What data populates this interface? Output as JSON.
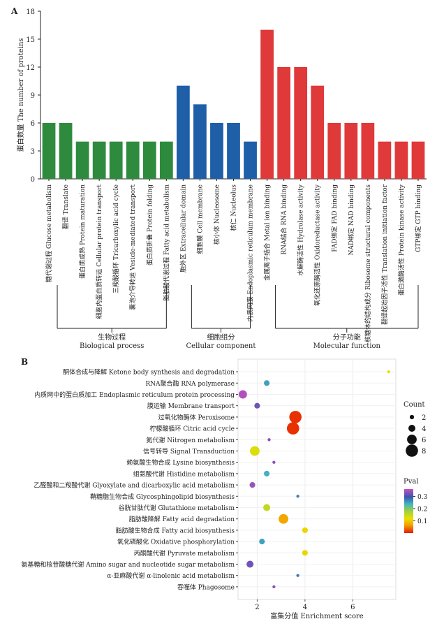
{
  "panels": {
    "a": "A",
    "b": "B"
  },
  "chart_data": [
    {
      "type": "bar",
      "ylabel": "蛋白数量 The number of proteins",
      "ylim": [
        0,
        18
      ],
      "yticks": [
        0,
        3,
        6,
        9,
        12,
        15,
        18
      ],
      "categories": [
        "糖代谢过程 Glucose metabolism",
        "翻译 Translate",
        "蛋白质成熟 Protein maturation",
        "细胞内蛋白质转运 Cellular protein transport",
        "三羧酸循环 Tricarboxylic acid cycle",
        "囊泡介导转运 Vesicle-mediated transport",
        "蛋白质折叠 Protein folding",
        "脂肪酸代谢过程 Fatty acid metabolism",
        "胞外区 Extracellular domain",
        "细胞膜 Cell membrane",
        "核小体 Nucleosome",
        "核仁 Nucleolus",
        "内质网膜 Endoplasmic reticulum membrane",
        "金属离子结合 Metal ion binding",
        "RNA结合 RNA binding",
        "水解酶活性 Hydrolase activity",
        "氧化还原酶活性 Oxidoreductase activity",
        "FAD绑定 FAD binding",
        "NAD绑定 NAD binding",
        "核糖体的结构成分 Ribosome structural components",
        "翻译起始因子活性 Translation initiation factor",
        "蛋白激酶活性 Protein kinase activity",
        "GTP绑定 GTP binding"
      ],
      "values": [
        6,
        6,
        4,
        4,
        4,
        4,
        4,
        4,
        10,
        8,
        6,
        6,
        4,
        16,
        12,
        12,
        10,
        6,
        6,
        6,
        4,
        4,
        4
      ],
      "groups": [
        {
          "zh": "生物过程",
          "en": "Biological process",
          "start": 0,
          "end": 7,
          "color": "#2e8b3e"
        },
        {
          "zh": "细胞组分",
          "en": "Cellular component",
          "start": 8,
          "end": 12,
          "color": "#1f5fa8"
        },
        {
          "zh": "分子功能",
          "en": "Molecular function",
          "start": 13,
          "end": 22,
          "color": "#e0393a"
        }
      ]
    },
    {
      "type": "scatter",
      "xlabel": "富集分值 Enrichment score",
      "xlim": [
        1.2,
        7.8
      ],
      "xticks": [
        2,
        4,
        6
      ],
      "count_legend": {
        "title": "Count",
        "values": [
          2,
          4,
          6,
          8
        ]
      },
      "pval_legend": {
        "title": "Pval",
        "ticks": [
          0.1,
          0.2,
          0.3
        ],
        "range": [
          0.0,
          0.36
        ]
      },
      "grid": true,
      "points": [
        {
          "label": "酮体合成与降解 Ketone body synthesis and degradation",
          "x": 7.5,
          "count": 1,
          "p": 0.12
        },
        {
          "label": "RNA聚合酶 RNA polymerase",
          "x": 2.4,
          "count": 3,
          "p": 0.25
        },
        {
          "label": "内质网中的蛋白质加工 Endoplasmic reticulum protein processing",
          "x": 1.4,
          "count": 5,
          "p": 0.35
        },
        {
          "label": "膜运输 Membrane transport",
          "x": 2.0,
          "count": 3,
          "p": 0.32
        },
        {
          "label": "过氧化物酶体 Peroxisome",
          "x": 3.6,
          "count": 8,
          "p": 0.01
        },
        {
          "label": "柠檬酸循环 Citric acid cycle",
          "x": 3.5,
          "count": 8,
          "p": 0.01
        },
        {
          "label": "氮代谢 Nitrogen metabolism",
          "x": 2.5,
          "count": 1,
          "p": 0.33
        },
        {
          "label": "信号转导 Signal Transduction",
          "x": 1.9,
          "count": 6,
          "p": 0.13
        },
        {
          "label": "赖氨酸生物合成 Lysine biosynthesis",
          "x": 2.7,
          "count": 1,
          "p": 0.33
        },
        {
          "label": "组氨酸代谢 Histidine metabolism",
          "x": 2.4,
          "count": 3,
          "p": 0.24
        },
        {
          "label": "乙醛酸和二羧酸代谢 Glyoxylate and dicarboxylic acid metabolism",
          "x": 1.8,
          "count": 3,
          "p": 0.34
        },
        {
          "label": "鞘糖脂生物合成 Glycosphingolipid biosynthesis",
          "x": 3.7,
          "count": 1,
          "p": 0.27
        },
        {
          "label": "谷胱甘肽代谢 Glutathione metabolism",
          "x": 2.4,
          "count": 4,
          "p": 0.15
        },
        {
          "label": "脂肪酸降解 Fatty acid degradation",
          "x": 3.1,
          "count": 6,
          "p": 0.07
        },
        {
          "label": "脂肪酸生物合成 Fatty acid biosynthesis",
          "x": 4.0,
          "count": 3,
          "p": 0.11
        },
        {
          "label": "氧化磷酸化 Oxidative phosphorylation",
          "x": 2.2,
          "count": 3,
          "p": 0.25
        },
        {
          "label": "丙酮酸代谢 Pyruvate metabolism",
          "x": 4.0,
          "count": 3,
          "p": 0.11
        },
        {
          "label": "氨基糖和核苷酸糖代谢 Amino sugar and nucleotide sugar metabolism",
          "x": 1.7,
          "count": 4,
          "p": 0.32
        },
        {
          "label": "α-亚麻酸代谢 α-linolenic acid metabolism",
          "x": 3.7,
          "count": 1,
          "p": 0.27
        },
        {
          "label": "吞噬体 Phagosome",
          "x": 2.7,
          "count": 1,
          "p": 0.33
        }
      ]
    }
  ]
}
